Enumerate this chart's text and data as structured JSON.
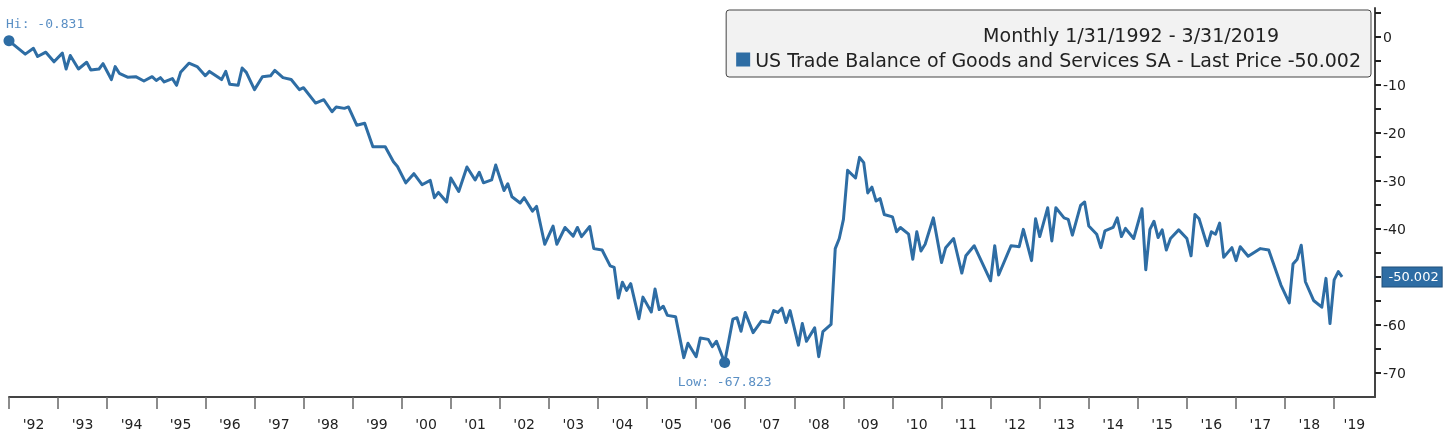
{
  "chart_data": {
    "type": "line",
    "legend_title": "Monthly 1/31/1992 - 3/31/2019",
    "legend": "top right",
    "marker": "none",
    "line_style": "solid",
    "xlim": [
      "1992-01",
      "2019-11"
    ],
    "ylim": [
      -75,
      6
    ],
    "xticks": [
      {
        "value": "1992-01",
        "label": null
      },
      {
        "value": "1992-07",
        "label": "'92"
      },
      {
        "value": "1993-01",
        "label": null
      },
      {
        "value": "1993-07",
        "label": "'93"
      },
      {
        "value": "1994-01",
        "label": null
      },
      {
        "value": "1994-07",
        "label": "'94"
      },
      {
        "value": "1995-01",
        "label": null
      },
      {
        "value": "1995-07",
        "label": "'95"
      },
      {
        "value": "1996-01",
        "label": null
      },
      {
        "value": "1996-07",
        "label": "'96"
      },
      {
        "value": "1997-01",
        "label": null
      },
      {
        "value": "1997-07",
        "label": "'97"
      },
      {
        "value": "1998-01",
        "label": null
      },
      {
        "value": "1998-07",
        "label": "'98"
      },
      {
        "value": "1999-01",
        "label": null
      },
      {
        "value": "1999-07",
        "label": "'99"
      },
      {
        "value": "2000-01",
        "label": null
      },
      {
        "value": "2000-07",
        "label": "'00"
      },
      {
        "value": "2001-01",
        "label": null
      },
      {
        "value": "2001-07",
        "label": "'01"
      },
      {
        "value": "2002-01",
        "label": null
      },
      {
        "value": "2002-07",
        "label": "'02"
      },
      {
        "value": "2003-01",
        "label": null
      },
      {
        "value": "2003-07",
        "label": "'03"
      },
      {
        "value": "2004-01",
        "label": null
      },
      {
        "value": "2004-07",
        "label": "'04"
      },
      {
        "value": "2005-01",
        "label": null
      },
      {
        "value": "2005-07",
        "label": "'05"
      },
      {
        "value": "2006-01",
        "label": null
      },
      {
        "value": "2006-07",
        "label": "'06"
      },
      {
        "value": "2007-01",
        "label": null
      },
      {
        "value": "2007-07",
        "label": "'07"
      },
      {
        "value": "2008-01",
        "label": null
      },
      {
        "value": "2008-07",
        "label": "'08"
      },
      {
        "value": "2009-01",
        "label": null
      },
      {
        "value": "2009-07",
        "label": "'09"
      },
      {
        "value": "2010-01",
        "label": null
      },
      {
        "value": "2010-07",
        "label": "'10"
      },
      {
        "value": "2011-01",
        "label": null
      },
      {
        "value": "2011-07",
        "label": "'11"
      },
      {
        "value": "2012-01",
        "label": null
      },
      {
        "value": "2012-07",
        "label": "'12"
      },
      {
        "value": "2013-01",
        "label": null
      },
      {
        "value": "2013-07",
        "label": "'13"
      },
      {
        "value": "2014-01",
        "label": null
      },
      {
        "value": "2014-07",
        "label": "'14"
      },
      {
        "value": "2015-01",
        "label": null
      },
      {
        "value": "2015-07",
        "label": "'15"
      },
      {
        "value": "2016-01",
        "label": null
      },
      {
        "value": "2016-07",
        "label": "'16"
      },
      {
        "value": "2017-01",
        "label": null
      },
      {
        "value": "2017-07",
        "label": "'17"
      },
      {
        "value": "2018-01",
        "label": null
      },
      {
        "value": "2018-07",
        "label": "'18"
      },
      {
        "value": "2019-01",
        "label": null
      },
      {
        "value": "2019-06",
        "label": "'19"
      }
    ],
    "yticks": [
      {
        "value": 5,
        "label": null
      },
      0,
      {
        "value": -5,
        "label": null
      },
      -10,
      {
        "value": -15,
        "label": null
      },
      -20,
      {
        "value": -25,
        "label": null
      },
      -30,
      {
        "value": -35,
        "label": null
      },
      -40,
      {
        "value": -45,
        "label": null
      },
      {
        "value": -50,
        "label": null
      },
      {
        "value": -55,
        "label": null
      },
      -60,
      {
        "value": -65,
        "label": null
      },
      -70
    ],
    "annotations": [
      {
        "text": "Hi: -0.831",
        "x": "1992-01",
        "y": -0.831
      },
      {
        "text": "Low: -67.823",
        "x": "2006-08",
        "y": -67.823
      },
      {
        "text": "-50.002",
        "x": "2019-11",
        "y": -50.002
      }
    ],
    "series": [
      {
        "name": "US Trade Balance of Goods and Services SA - Last Price -50.002",
        "color": "#2e6da4",
        "x": [
          "1992-01",
          "1992-05",
          "1992-07",
          "1992-08",
          "1992-10",
          "1992-12",
          "1993-02",
          "1993-03",
          "1993-04",
          "1993-06",
          "1993-08",
          "1993-09",
          "1993-11",
          "1993-12",
          "1994-02",
          "1994-03",
          "1994-04",
          "1994-06",
          "1994-08",
          "1994-10",
          "1994-12",
          "1995-01",
          "1995-02",
          "1995-03",
          "1995-05",
          "1995-06",
          "1995-07",
          "1995-09",
          "1995-11",
          "1996-01",
          "1996-02",
          "1996-05",
          "1996-06",
          "1996-07",
          "1996-09",
          "1996-10",
          "1996-11",
          "1997-01",
          "1997-03",
          "1997-05",
          "1997-06",
          "1997-08",
          "1997-10",
          "1997-12",
          "1998-01",
          "1998-04",
          "1998-06",
          "1998-08",
          "1998-09",
          "1998-11",
          "1998-12",
          "1999-02",
          "1999-04",
          "1999-06",
          "1999-09",
          "1999-11",
          "1999-12",
          "2000-02",
          "2000-04",
          "2000-06",
          "2000-08",
          "2000-09",
          "2000-10",
          "2000-12",
          "2001-01",
          "2001-03",
          "2001-05",
          "2001-07",
          "2001-08",
          "2001-09",
          "2001-11",
          "2001-12",
          "2002-02",
          "2002-03",
          "2002-04",
          "2002-06",
          "2002-07",
          "2002-09",
          "2002-10",
          "2002-12",
          "2003-02",
          "2003-03",
          "2003-05",
          "2003-07",
          "2003-08",
          "2003-09",
          "2003-11",
          "2003-12",
          "2004-02",
          "2004-04",
          "2004-05",
          "2004-06",
          "2004-07",
          "2004-08",
          "2004-09",
          "2004-11",
          "2004-12",
          "2005-02",
          "2005-03",
          "2005-04",
          "2005-05",
          "2005-06",
          "2005-08",
          "2005-10",
          "2005-11",
          "2006-01",
          "2006-02",
          "2006-04",
          "2006-05",
          "2006-06",
          "2006-08",
          "2006-10",
          "2006-11",
          "2006-12",
          "2007-01",
          "2007-03",
          "2007-05",
          "2007-07",
          "2007-08",
          "2007-09",
          "2007-10",
          "2007-11",
          "2007-12",
          "2008-02",
          "2008-03",
          "2008-04",
          "2008-06",
          "2008-07",
          "2008-08",
          "2008-10",
          "2008-11",
          "2008-12",
          "2009-01",
          "2009-02",
          "2009-04",
          "2009-05",
          "2009-06",
          "2009-07",
          "2009-08",
          "2009-09",
          "2009-10",
          "2009-11",
          "2010-01",
          "2010-02",
          "2010-03",
          "2010-05",
          "2010-06",
          "2010-07",
          "2010-08",
          "2010-09",
          "2010-11",
          "2011-01",
          "2011-02",
          "2011-04",
          "2011-06",
          "2011-07",
          "2011-09",
          "2012-01",
          "2012-02",
          "2012-03",
          "2012-06",
          "2012-08",
          "2012-09",
          "2012-11",
          "2012-12",
          "2013-01",
          "2013-03",
          "2013-04",
          "2013-05",
          "2013-07",
          "2013-08",
          "2013-09",
          "2013-11",
          "2013-12",
          "2014-01",
          "2014-03",
          "2014-04",
          "2014-05",
          "2014-07",
          "2014-08",
          "2014-09",
          "2014-10",
          "2014-12",
          "2015-02",
          "2015-03",
          "2015-04",
          "2015-05",
          "2015-06",
          "2015-07",
          "2015-08",
          "2015-09",
          "2015-11",
          "2016-01",
          "2016-02",
          "2016-03",
          "2016-04",
          "2016-06",
          "2016-07",
          "2016-08",
          "2016-09",
          "2016-10",
          "2016-12",
          "2017-01",
          "2017-02",
          "2017-04",
          "2017-07",
          "2017-09",
          "2017-12",
          "2018-02",
          "2018-03",
          "2018-04",
          "2018-05",
          "2018-06",
          "2018-08",
          "2018-10",
          "2018-11",
          "2018-12",
          "2019-01",
          "2019-02",
          "2019-03"
        ],
        "values": [
          -0.831,
          -3.6,
          -2.4,
          -4.1,
          -3.2,
          -5.2,
          -3.4,
          -6.7,
          -3.9,
          -6.7,
          -5.3,
          -6.9,
          -6.7,
          -5.6,
          -8.9,
          -6.2,
          -7.6,
          -8.4,
          -8.3,
          -9.2,
          -8.3,
          -9.1,
          -8.5,
          -9.4,
          -8.7,
          -10.1,
          -7.4,
          -5.5,
          -6.2,
          -8.1,
          -7.2,
          -8.9,
          -7.2,
          -9.9,
          -10.1,
          -6.5,
          -7.4,
          -11.0,
          -8.3,
          -8.1,
          -7.0,
          -8.5,
          -8.9,
          -11.0,
          -10.6,
          -13.8,
          -13.1,
          -15.6,
          -14.6,
          -14.9,
          -14.6,
          -18.4,
          -18.0,
          -22.9,
          -22.9,
          -26.0,
          -27.0,
          -30.4,
          -28.5,
          -30.8,
          -29.9,
          -33.5,
          -32.4,
          -34.4,
          -29.4,
          -32.2,
          -27.1,
          -29.8,
          -28.2,
          -30.4,
          -29.8,
          -26.7,
          -32.0,
          -30.6,
          -33.3,
          -34.6,
          -33.5,
          -36.3,
          -35.3,
          -43.2,
          -39.4,
          -43.2,
          -39.7,
          -41.5,
          -39.7,
          -41.6,
          -39.5,
          -44.1,
          -44.4,
          -47.7,
          -48.0,
          -54.4,
          -51.1,
          -52.8,
          -51.4,
          -58.7,
          -54.2,
          -57.3,
          -52.5,
          -56.8,
          -56.1,
          -58.0,
          -58.3,
          -66.8,
          -63.8,
          -66.6,
          -62.7,
          -63.0,
          -64.5,
          -63.4,
          -67.823,
          -58.8,
          -58.5,
          -61.3,
          -57.4,
          -61.6,
          -59.2,
          -59.5,
          -57.0,
          -57.4,
          -56.5,
          -59.5,
          -57.0,
          -64.2,
          -59.7,
          -63.4,
          -60.6,
          -66.6,
          -61.4,
          -59.9,
          -44.1,
          -42.0,
          -38.0,
          -27.8,
          -29.4,
          -25.1,
          -26.2,
          -32.5,
          -31.3,
          -34.2,
          -33.7,
          -37.0,
          -37.5,
          -40.6,
          -39.7,
          -41.1,
          -46.3,
          -40.6,
          -44.6,
          -43.2,
          -37.7,
          -47.0,
          -43.9,
          -42.0,
          -49.2,
          -45.6,
          -43.5,
          -50.8,
          -43.5,
          -49.6,
          -43.5,
          -43.7,
          -40.1,
          -46.6,
          -37.9,
          -41.6,
          -35.6,
          -42.5,
          -35.6,
          -37.7,
          -38.0,
          -41.3,
          -35.1,
          -34.4,
          -39.4,
          -41.1,
          -43.9,
          -40.4,
          -39.7,
          -37.7,
          -41.6,
          -39.9,
          -42.0,
          -35.8,
          -48.5,
          -40.1,
          -38.4,
          -41.8,
          -40.2,
          -44.4,
          -42.0,
          -40.2,
          -42.0,
          -45.6,
          -37.0,
          -37.9,
          -43.5,
          -40.6,
          -41.1,
          -38.8,
          -45.9,
          -43.9,
          -46.6,
          -43.7,
          -45.7,
          -44.1,
          -44.4,
          -51.7,
          -55.4,
          -47.3,
          -46.3,
          -43.4,
          -51.0,
          -54.9,
          -56.3,
          -50.3,
          -59.7,
          -50.6,
          -48.9,
          -50.002
        ]
      }
    ]
  }
}
